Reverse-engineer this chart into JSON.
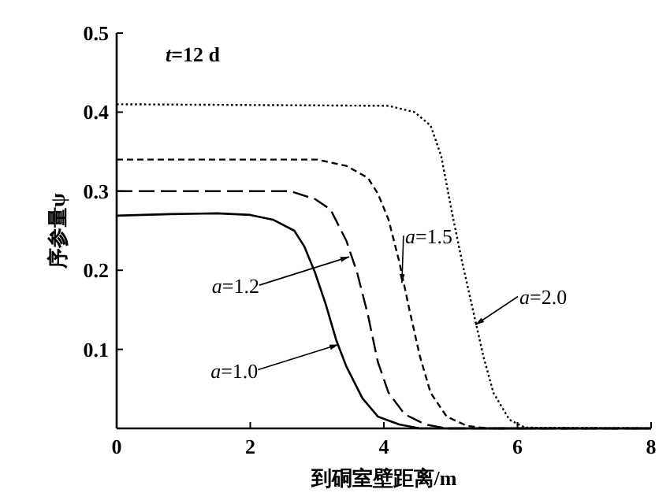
{
  "chart_data": {
    "type": "line",
    "xlabel": "到硐室壁距离/m",
    "ylabel": "序参量ψ",
    "xlim": [
      0,
      8
    ],
    "ylim": [
      0,
      0.5
    ],
    "xticks": [
      0,
      2,
      4,
      6,
      8
    ],
    "yticks": [
      {
        "value": 0,
        "label": null
      },
      0.1,
      0.2,
      0.3,
      0.4,
      0.5
    ],
    "grid": false,
    "annotations": [
      "*t*=12 d",
      {
        "text": "*a*=1.0",
        "x": 3.32,
        "y": 0.106
      },
      {
        "text": "*a*=1.2",
        "x": 3.48,
        "y": 0.217
      },
      {
        "text": "*a*=1.5",
        "x": 4.27,
        "y": 0.184
      },
      {
        "text": "*a*=2.0",
        "x": 5.37,
        "y": 0.131
      }
    ],
    "series": [
      {
        "color": "#000000",
        "line_style": "solid",
        "x": [
          0,
          0.8,
          1.5,
          2.0,
          2.34,
          2.66,
          2.81,
          2.97,
          3.13,
          3.29,
          3.44,
          3.68,
          3.91,
          4.23,
          4.54,
          8
        ],
        "values": [
          0.269,
          0.271,
          0.272,
          0.27,
          0.264,
          0.25,
          0.23,
          0.197,
          0.157,
          0.111,
          0.078,
          0.038,
          0.015,
          0.005,
          0,
          0
        ]
      },
      {
        "color": "#000000",
        "line_style": "dashed",
        "x": [
          0,
          2.6,
          2.97,
          3.2,
          3.44,
          3.6,
          3.76,
          3.91,
          4.07,
          4.31,
          4.62,
          4.94,
          8
        ],
        "values": [
          0.3,
          0.3,
          0.29,
          0.277,
          0.237,
          0.197,
          0.144,
          0.084,
          0.045,
          0.018,
          0.005,
          0,
          0
        ]
      },
      {
        "color": "#000000",
        "line_style": "dashed",
        "x": [
          0,
          3.0,
          3.44,
          3.76,
          3.91,
          4.07,
          4.23,
          4.38,
          4.54,
          4.7,
          4.94,
          5.25,
          5.56,
          8
        ],
        "values": [
          0.34,
          0.34,
          0.332,
          0.317,
          0.297,
          0.264,
          0.211,
          0.151,
          0.091,
          0.045,
          0.015,
          0.003,
          0,
          0
        ]
      },
      {
        "color": "#000000",
        "line_style": "dotted",
        "x": [
          0,
          4.07,
          4.46,
          4.7,
          4.86,
          5.01,
          5.17,
          5.33,
          5.49,
          5.64,
          5.88,
          6.11,
          8
        ],
        "values": [
          0.41,
          0.408,
          0.4,
          0.383,
          0.344,
          0.277,
          0.211,
          0.151,
          0.091,
          0.045,
          0.011,
          0.001,
          0
        ]
      }
    ]
  }
}
